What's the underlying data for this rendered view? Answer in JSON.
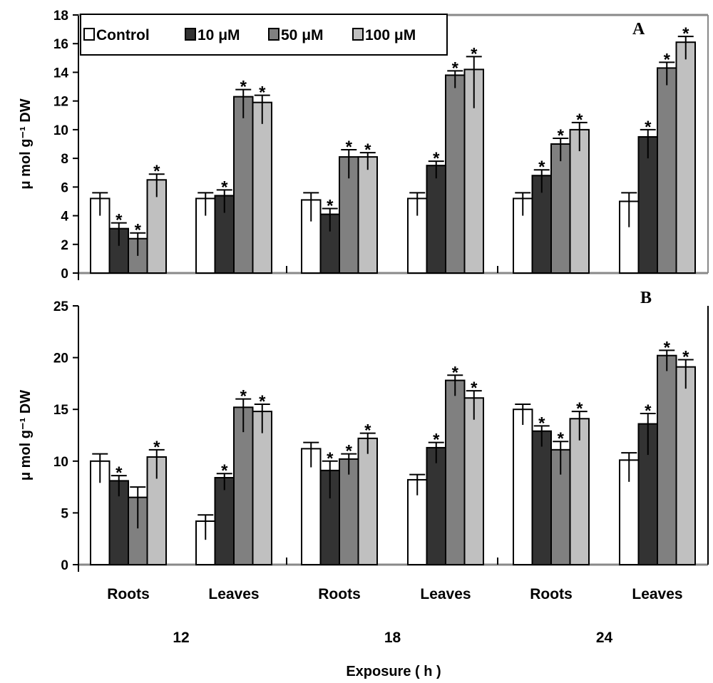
{
  "chart_data": [
    {
      "type": "bar",
      "panel_label": "A",
      "ylabel": "μ mol g⁻¹ DW",
      "ylim": [
        0,
        18
      ],
      "yticks": [
        "0",
        "2",
        "4",
        "6",
        "8",
        "10",
        "12",
        "14",
        "16",
        "18"
      ],
      "categories": [
        "Roots",
        "Leaves",
        "Roots",
        "Leaves",
        "Roots",
        "Leaves"
      ],
      "series": [
        {
          "name": "Control",
          "color": "#ffffff",
          "values": [
            5.2,
            5.2,
            5.1,
            5.2,
            5.2,
            5.0
          ],
          "errors": [
            0.4,
            0.4,
            0.5,
            0.4,
            0.4,
            0.6
          ],
          "significant": [
            false,
            false,
            false,
            false,
            false,
            false
          ]
        },
        {
          "name": "10 μM",
          "color": "#333333",
          "values": [
            3.1,
            5.4,
            4.1,
            7.5,
            6.8,
            9.5
          ],
          "errors": [
            0.4,
            0.4,
            0.4,
            0.3,
            0.4,
            0.5
          ],
          "significant": [
            true,
            true,
            true,
            true,
            true,
            true
          ]
        },
        {
          "name": "50 μM",
          "color": "#808080",
          "values": [
            2.4,
            12.3,
            8.1,
            13.8,
            9.0,
            14.3
          ],
          "errors": [
            0.4,
            0.5,
            0.5,
            0.3,
            0.4,
            0.4
          ],
          "significant": [
            true,
            true,
            true,
            true,
            true,
            true
          ]
        },
        {
          "name": "100 μM",
          "color": "#c0c0c0",
          "values": [
            6.5,
            11.9,
            8.1,
            14.2,
            10.0,
            16.1
          ],
          "errors": [
            0.4,
            0.5,
            0.3,
            0.9,
            0.5,
            0.4
          ],
          "significant": [
            true,
            true,
            true,
            true,
            true,
            true
          ]
        }
      ]
    },
    {
      "type": "bar",
      "panel_label": "B",
      "ylabel": "μ mol g⁻¹ DW",
      "ylim": [
        0,
        25
      ],
      "yticks": [
        "0",
        "5",
        "10",
        "15",
        "20",
        "25"
      ],
      "categories": [
        "Roots",
        "Leaves",
        "Roots",
        "Leaves",
        "Roots",
        "Leaves"
      ],
      "series": [
        {
          "name": "Control",
          "color": "#ffffff",
          "values": [
            10.0,
            4.2,
            11.2,
            8.2,
            15.0,
            10.1
          ],
          "errors": [
            0.7,
            0.6,
            0.6,
            0.5,
            0.5,
            0.7
          ],
          "significant": [
            false,
            false,
            false,
            false,
            false,
            false
          ]
        },
        {
          "name": "10 μM",
          "color": "#333333",
          "values": [
            8.1,
            8.4,
            9.1,
            11.3,
            12.9,
            13.6
          ],
          "errors": [
            0.5,
            0.4,
            0.9,
            0.5,
            0.5,
            1.0
          ],
          "significant": [
            true,
            true,
            true,
            true,
            true,
            true
          ]
        },
        {
          "name": "50 μM",
          "color": "#808080",
          "values": [
            6.5,
            15.2,
            10.2,
            17.8,
            11.1,
            20.2
          ],
          "errors": [
            1.0,
            0.8,
            0.5,
            0.5,
            0.8,
            0.5
          ],
          "significant": [
            false,
            true,
            true,
            true,
            true,
            true
          ]
        },
        {
          "name": "100 μM",
          "color": "#c0c0c0",
          "values": [
            10.4,
            14.8,
            12.2,
            16.1,
            14.1,
            19.1
          ],
          "errors": [
            0.7,
            0.7,
            0.5,
            0.7,
            0.7,
            0.7
          ],
          "significant": [
            true,
            true,
            true,
            true,
            true,
            true
          ]
        }
      ]
    }
  ],
  "legend": [
    "Control",
    "10 μM",
    "50 μM",
    "100 μM"
  ],
  "time_labels": [
    "12",
    "18",
    "24"
  ],
  "xlabel": "Exposure ( h )"
}
